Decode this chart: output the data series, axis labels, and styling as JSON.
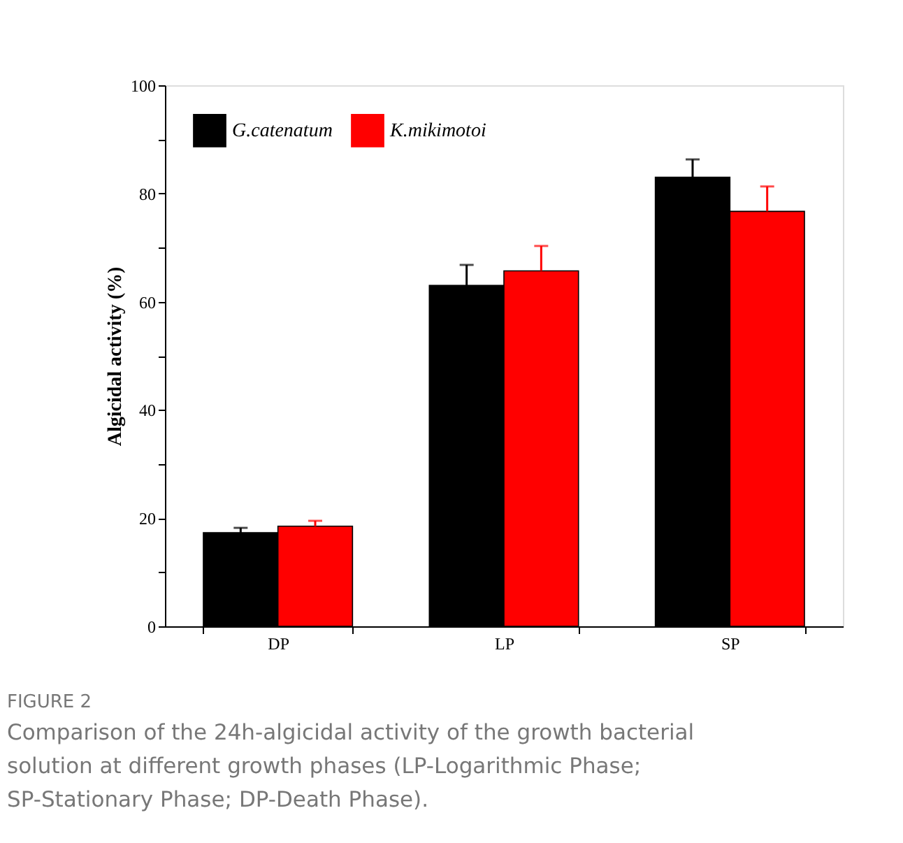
{
  "chart_data": {
    "type": "bar",
    "ylabel": "Algicidal activity (%)",
    "categories": [
      "DP",
      "LP",
      "SP"
    ],
    "series": [
      {
        "name": "G.catenatum",
        "color": "#000000",
        "values": [
          17.3,
          63.0,
          83.0
        ],
        "errors": [
          [
            17.3,
            18.2
          ],
          [
            63.0,
            66.8
          ],
          [
            83.0,
            86.3
          ]
        ]
      },
      {
        "name": "K.mikimotoi",
        "color": "#ff0000",
        "values": [
          18.5,
          65.7,
          76.7
        ],
        "errors": [
          [
            18.5,
            19.5
          ],
          [
            65.7,
            70.3
          ],
          [
            76.7,
            81.3
          ]
        ]
      }
    ],
    "ylim": [
      0,
      100
    ],
    "yticks": [
      0,
      {
        "value": 10,
        "label": null
      },
      20,
      {
        "value": 30,
        "label": null
      },
      40,
      {
        "value": 50,
        "label": null
      },
      60,
      {
        "value": 70,
        "label": null
      },
      80,
      {
        "value": 90,
        "label": null
      },
      100
    ],
    "grid": false,
    "legend": "top left",
    "annotations": [
      "FIGURE 2",
      "Comparison of the 24h-algicidal activity of the growth bacterial solution at different growth phases (LP-Logarithmic Phase; SP-Stationary Phase; DP-Death Phase)."
    ]
  }
}
